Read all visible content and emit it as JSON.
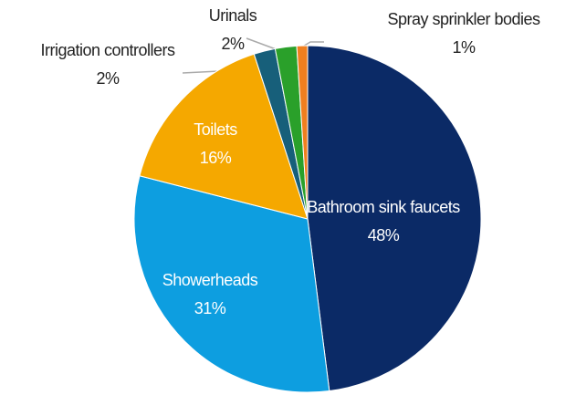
{
  "chart_data": {
    "type": "pie",
    "categories": [
      "Bathroom sink faucets",
      "Showerheads",
      "Toilets",
      "Irrigation controllers",
      "Urinals",
      "Spray sprinkler bodies"
    ],
    "values": [
      48,
      31,
      16,
      2,
      2,
      1
    ],
    "value_labels": [
      "48%",
      "31%",
      "16%",
      "2%",
      "2%",
      "1%"
    ],
    "colors": [
      "#0b2a66",
      "#0d9ee0",
      "#f5a800",
      "#175f7a",
      "#2aa02a",
      "#f07f1f"
    ]
  }
}
